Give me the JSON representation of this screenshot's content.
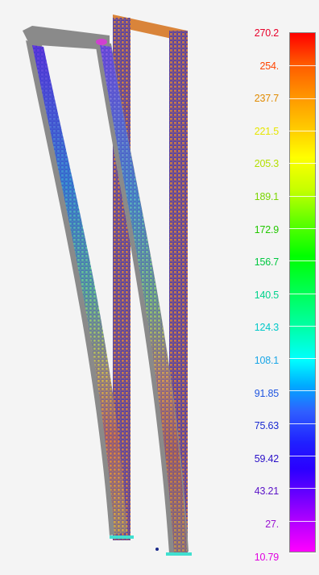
{
  "legend": {
    "labels": [
      {
        "text": "270.2",
        "color": "#e8002a"
      },
      {
        "text": "254.",
        "color": "#ff4400"
      },
      {
        "text": "237.7",
        "color": "#e08a00"
      },
      {
        "text": "221.5",
        "color": "#e6e600"
      },
      {
        "text": "205.3",
        "color": "#b4e000"
      },
      {
        "text": "189.1",
        "color": "#7ad600"
      },
      {
        "text": "172.9",
        "color": "#22c800"
      },
      {
        "text": "156.7",
        "color": "#00c840"
      },
      {
        "text": "140.5",
        "color": "#00d28c"
      },
      {
        "text": "124.3",
        "color": "#00c8c8"
      },
      {
        "text": "108.1",
        "color": "#1aa6e6"
      },
      {
        "text": "91.85",
        "color": "#1f55e0"
      },
      {
        "text": "75.63",
        "color": "#1a2ad0"
      },
      {
        "text": "59.42",
        "color": "#2a10c8"
      },
      {
        "text": "43.21",
        "color": "#5a12c8"
      },
      {
        "text": "27.",
        "color": "#9a12d2"
      },
      {
        "text": "10.79",
        "color": "#e000e0"
      }
    ]
  },
  "colors": {
    "background": "#f4f4f4",
    "undeformed_frame": "#d9843a",
    "deformed_frame": "#8a8a8a",
    "mesh_line": "#2a2ac8",
    "support": "#40e0d0"
  }
}
